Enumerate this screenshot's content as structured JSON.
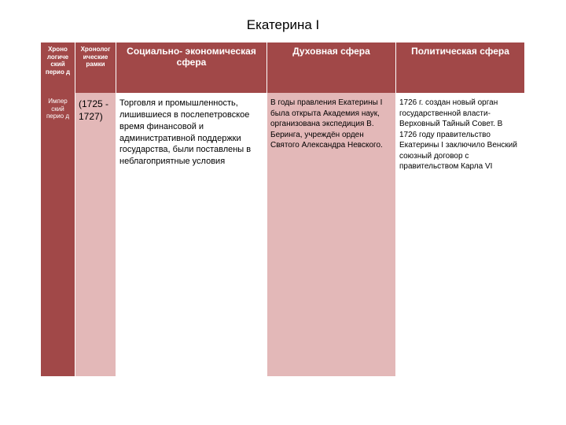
{
  "title": "Екатерина I",
  "table": {
    "headers": {
      "col1": "Хроно логиче ский перио д",
      "col2": "Хронолог ические рамки",
      "col3": "Социально- экономическая сфера",
      "col4": "Духовная сфера",
      "col5": "Политическая сфера"
    },
    "rows": [
      {
        "label": "Импер ский перио д",
        "chrono": "(1725 - 1727)",
        "socio": "Торговля и промышленность, лишившиеся в послепетровское время финансовой и административной поддержки государства, были поставлены в неблагоприятные условия",
        "spirit": "В годы правления Екатерины I была открыта Академия наук, организована экспедиция В. Беринга, учреждён орден Святого Александра Невского.",
        "polit": "1726 г. создан новый орган государственной власти-Верховный Тайный Совет. В 1726 году правительство Екатерины I заключило Венский союзный договор с правительством Карла VI"
      }
    ],
    "colors": {
      "header_bg": "#a14848",
      "header_text": "#ffffff",
      "alt_bg": "#e3b8b8",
      "plain_bg": "#ffffff",
      "text": "#000000"
    }
  }
}
